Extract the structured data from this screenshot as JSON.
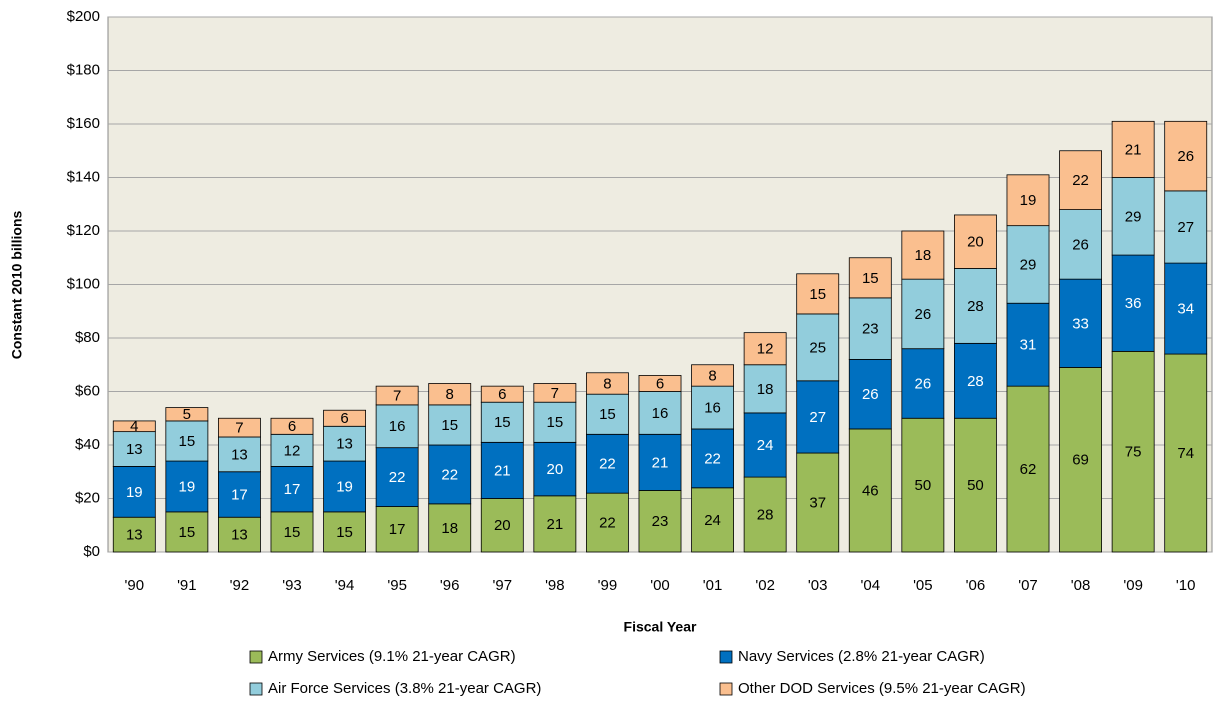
{
  "chart_data": {
    "type": "stacked_bar",
    "x_label": "Fiscal Year",
    "y_label": "Constant 2010 billions",
    "categories": [
      "'90",
      "'91",
      "'92",
      "'93",
      "'94",
      "'95",
      "'96",
      "'97",
      "'98",
      "'99",
      "'00",
      "'01",
      "'02",
      "'03",
      "'04",
      "'05",
      "'06",
      "'07",
      "'08",
      "'09",
      "'10"
    ],
    "series": [
      {
        "name": "Army Services (9.1% 21-year CAGR)",
        "color": "#9bbb59",
        "label_color": "#000000",
        "values": [
          13,
          15,
          13,
          15,
          15,
          17,
          18,
          20,
          21,
          22,
          23,
          24,
          28,
          37,
          46,
          50,
          50,
          62,
          69,
          75,
          74
        ]
      },
      {
        "name": "Navy Services (2.8% 21-year CAGR)",
        "color": "#0070c0",
        "label_color": "#ffffff",
        "values": [
          19,
          19,
          17,
          17,
          19,
          22,
          22,
          21,
          20,
          22,
          21,
          22,
          24,
          27,
          26,
          26,
          28,
          31,
          33,
          36,
          34
        ]
      },
      {
        "name": "Air Force Services (3.8% 21-year CAGR)",
        "color": "#92cddc",
        "label_color": "#000000",
        "values": [
          13,
          15,
          13,
          12,
          13,
          16,
          15,
          15,
          15,
          15,
          16,
          16,
          18,
          25,
          23,
          26,
          28,
          29,
          26,
          29,
          27
        ]
      },
      {
        "name": "Other DOD Services (9.5% 21-year CAGR)",
        "color": "#fabf8f",
        "label_color": "#000000",
        "values": [
          4,
          5,
          7,
          6,
          6,
          7,
          8,
          6,
          7,
          8,
          6,
          8,
          12,
          15,
          15,
          18,
          20,
          19,
          22,
          21,
          26
        ]
      }
    ],
    "ylim": [
      0,
      200
    ],
    "yticks": [
      {
        "value": 0,
        "label": "$0"
      },
      {
        "value": 20,
        "label": "$20"
      },
      {
        "value": 40,
        "label": "$40"
      },
      {
        "value": 60,
        "label": "$60"
      },
      {
        "value": 80,
        "label": "$80"
      },
      {
        "value": 100,
        "label": "$100"
      },
      {
        "value": 120,
        "label": "$120"
      },
      {
        "value": 140,
        "label": "$140"
      },
      {
        "value": 160,
        "label": "$160"
      },
      {
        "value": 180,
        "label": "$180"
      },
      {
        "value": 200,
        "label": "$200"
      }
    ],
    "grid": true,
    "plot_background": "#eeece1",
    "legend": "bottom"
  }
}
